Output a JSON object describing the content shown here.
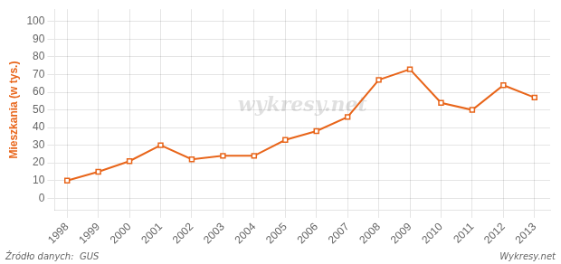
{
  "chart_data": {
    "type": "line",
    "ylabel": "Mieszkania (w tys.)",
    "x": [
      1998,
      1999,
      2000,
      2001,
      2002,
      2003,
      2004,
      2005,
      2006,
      2007,
      2008,
      2009,
      2010,
      2011,
      2012,
      2013
    ],
    "values": [
      10,
      15,
      21,
      30,
      22,
      24,
      24,
      33,
      38,
      46,
      67,
      73,
      54,
      50,
      64,
      57
    ],
    "color": "#e8651a",
    "marker": "square",
    "xlim": [
      1997.6,
      2013.5
    ],
    "xticks": [
      1998,
      1999,
      2000,
      2001,
      2002,
      2003,
      2004,
      2005,
      2006,
      2007,
      2008,
      2009,
      2010,
      2011,
      2012,
      2013
    ],
    "ylim": [
      -7,
      107
    ],
    "yticks": [
      0,
      10,
      20,
      30,
      40,
      50,
      60,
      70,
      80,
      90,
      100
    ],
    "grid": true,
    "annotations": [
      "wykresy.net",
      "Źródło danych:  GUS",
      "Wykresy.net"
    ]
  }
}
